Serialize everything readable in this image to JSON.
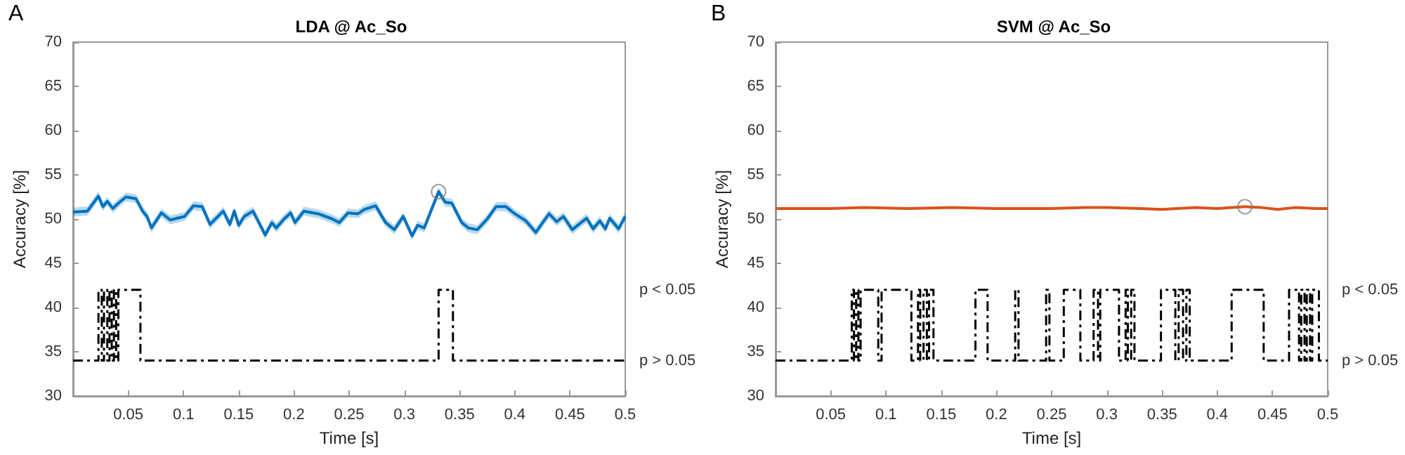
{
  "chart_data": [
    {
      "type": "line",
      "title": "LDA @ Ac_So",
      "xlabel": "Time [s]",
      "ylabel": "Accuracy [%]",
      "annotations": [
        "A",
        "p < 0.05",
        "p > 0.05"
      ],
      "xlim": [
        0,
        0.5
      ],
      "xticks": [
        0.05,
        0.1,
        0.15,
        0.2,
        0.25,
        0.3,
        0.35,
        0.4,
        0.45,
        0.5
      ],
      "ylim": [
        30,
        70
      ],
      "yticks": [
        30,
        35,
        40,
        45,
        50,
        55,
        60,
        65,
        70
      ],
      "series": [
        {
          "color": "#0072bd",
          "x": [
            0,
            0.013,
            0.023,
            0.027,
            0.031,
            0.036,
            0.042,
            0.048,
            0.057,
            0.063,
            0.067,
            0.071,
            0.08,
            0.088,
            0.101,
            0.109,
            0.117,
            0.124,
            0.136,
            0.142,
            0.146,
            0.15,
            0.155,
            0.163,
            0.174,
            0.18,
            0.184,
            0.191,
            0.197,
            0.201,
            0.209,
            0.222,
            0.235,
            0.241,
            0.249,
            0.258,
            0.264,
            0.274,
            0.283,
            0.291,
            0.299,
            0.307,
            0.312,
            0.318,
            0.331,
            0.337,
            0.343,
            0.352,
            0.358,
            0.366,
            0.375,
            0.383,
            0.392,
            0.4,
            0.41,
            0.419,
            0.431,
            0.438,
            0.444,
            0.452,
            0.465,
            0.471,
            0.477,
            0.482,
            0.486,
            0.494,
            0.5
          ],
          "values": [
            50.8,
            50.9,
            52.6,
            51.4,
            52.0,
            51.2,
            51.9,
            52.5,
            52.3,
            50.9,
            50.3,
            49.0,
            50.7,
            49.9,
            50.3,
            51.5,
            51.4,
            49.4,
            50.9,
            49.4,
            50.9,
            49.3,
            50.3,
            50.9,
            48.2,
            49.6,
            49.0,
            50.0,
            50.7,
            49.6,
            50.9,
            50.6,
            50.0,
            49.6,
            50.7,
            50.6,
            51.1,
            51.5,
            49.6,
            48.8,
            50.3,
            48.1,
            49.3,
            49.0,
            53.1,
            51.9,
            51.8,
            49.6,
            49.0,
            48.8,
            50.0,
            51.4,
            51.4,
            50.6,
            49.8,
            48.5,
            50.6,
            49.7,
            50.3,
            48.8,
            50.1,
            48.9,
            49.8,
            48.9,
            50.1,
            48.9,
            50.3
          ],
          "lower": [
            50.3,
            50.4,
            52.1,
            50.9,
            51.5,
            50.7,
            51.4,
            52.0,
            51.8,
            50.4,
            49.8,
            48.5,
            50.2,
            49.4,
            49.8,
            51.0,
            50.9,
            48.9,
            50.4,
            48.9,
            50.4,
            48.8,
            49.8,
            50.4,
            47.7,
            49.1,
            48.5,
            49.5,
            50.2,
            49.1,
            50.4,
            50.1,
            49.5,
            49.1,
            50.2,
            50.1,
            50.6,
            51.0,
            49.1,
            48.3,
            49.8,
            47.6,
            48.8,
            48.5,
            52.6,
            51.4,
            51.3,
            49.1,
            48.5,
            48.3,
            49.5,
            50.9,
            50.9,
            50.1,
            49.3,
            48.0,
            50.1,
            49.2,
            49.8,
            48.3,
            49.6,
            48.4,
            49.3,
            48.4,
            49.6,
            48.4,
            49.8
          ],
          "upper": [
            51.3,
            51.4,
            53.1,
            51.9,
            52.5,
            51.7,
            52.4,
            53.0,
            52.8,
            51.4,
            50.8,
            49.5,
            51.2,
            50.4,
            50.8,
            52.0,
            51.9,
            49.9,
            51.4,
            49.9,
            51.4,
            49.8,
            50.8,
            51.4,
            48.7,
            50.1,
            49.5,
            50.5,
            51.2,
            50.1,
            51.4,
            51.1,
            50.5,
            50.1,
            51.2,
            51.1,
            51.6,
            52.0,
            50.1,
            49.3,
            50.8,
            48.6,
            49.8,
            49.5,
            53.6,
            52.4,
            52.3,
            50.1,
            49.5,
            49.3,
            50.5,
            51.9,
            51.9,
            51.1,
            50.3,
            49.0,
            51.1,
            50.2,
            50.8,
            49.3,
            50.6,
            49.4,
            50.3,
            49.4,
            50.6,
            49.4,
            50.8
          ]
        },
        {
          "type": "scatter",
          "color": "#808080",
          "marker": "circle",
          "x": [
            0.331
          ],
          "values": [
            53.1
          ]
        },
        {
          "type": "step",
          "color": "#000000",
          "line_style": "dashed",
          "x": [
            0,
            0.023,
            0.026,
            0.028,
            0.031,
            0.033,
            0.035,
            0.037,
            0.039,
            0.041,
            0.061,
            0.331,
            0.344,
            0.5
          ],
          "values": [
            34,
            42,
            34,
            42,
            34,
            42,
            34,
            42,
            34,
            42,
            34,
            42,
            34,
            34
          ]
        }
      ]
    },
    {
      "type": "line",
      "title": "SVM @ Ac_So",
      "xlabel": "Time [s]",
      "ylabel": "Accuracy [%]",
      "annotations": [
        "B",
        "p < 0.05",
        "p > 0.05"
      ],
      "xlim": [
        0,
        0.5
      ],
      "xticks": [
        0.05,
        0.1,
        0.15,
        0.2,
        0.25,
        0.3,
        0.35,
        0.4,
        0.45,
        0.5
      ],
      "ylim": [
        30,
        70
      ],
      "yticks": [
        30,
        35,
        40,
        45,
        50,
        55,
        60,
        65,
        70
      ],
      "series": [
        {
          "color": "#d95319",
          "x": [
            0,
            0.05,
            0.08,
            0.12,
            0.16,
            0.2,
            0.25,
            0.28,
            0.3,
            0.33,
            0.35,
            0.38,
            0.4,
            0.425,
            0.44,
            0.455,
            0.47,
            0.49,
            0.5
          ],
          "values": [
            51.2,
            51.2,
            51.3,
            51.2,
            51.3,
            51.2,
            51.2,
            51.3,
            51.3,
            51.2,
            51.1,
            51.3,
            51.2,
            51.4,
            51.3,
            51.1,
            51.3,
            51.2,
            51.2
          ]
        },
        {
          "type": "scatter",
          "color": "#808080",
          "marker": "circle",
          "x": [
            0.425
          ],
          "values": [
            51.4
          ]
        },
        {
          "type": "step",
          "color": "#000000",
          "line_style": "dashed",
          "x": [
            0,
            0.069,
            0.071,
            0.073,
            0.075,
            0.077,
            0.093,
            0.096,
            0.123,
            0.129,
            0.131,
            0.134,
            0.137,
            0.139,
            0.143,
            0.181,
            0.192,
            0.217,
            0.22,
            0.245,
            0.248,
            0.261,
            0.276,
            0.288,
            0.292,
            0.294,
            0.311,
            0.317,
            0.319,
            0.322,
            0.325,
            0.349,
            0.362,
            0.365,
            0.369,
            0.372,
            0.375,
            0.413,
            0.442,
            0.465,
            0.474,
            0.476,
            0.479,
            0.481,
            0.484,
            0.486,
            0.492,
            0.5
          ],
          "values": [
            34,
            42,
            34,
            42,
            34,
            42,
            34,
            42,
            34,
            42,
            34,
            42,
            34,
            42,
            34,
            42,
            34,
            42,
            34,
            42,
            34,
            42,
            34,
            42,
            34,
            42,
            34,
            42,
            34,
            42,
            34,
            42,
            34,
            42,
            34,
            42,
            34,
            42,
            34,
            42,
            34,
            42,
            34,
            42,
            34,
            42,
            34,
            34
          ]
        }
      ]
    }
  ]
}
